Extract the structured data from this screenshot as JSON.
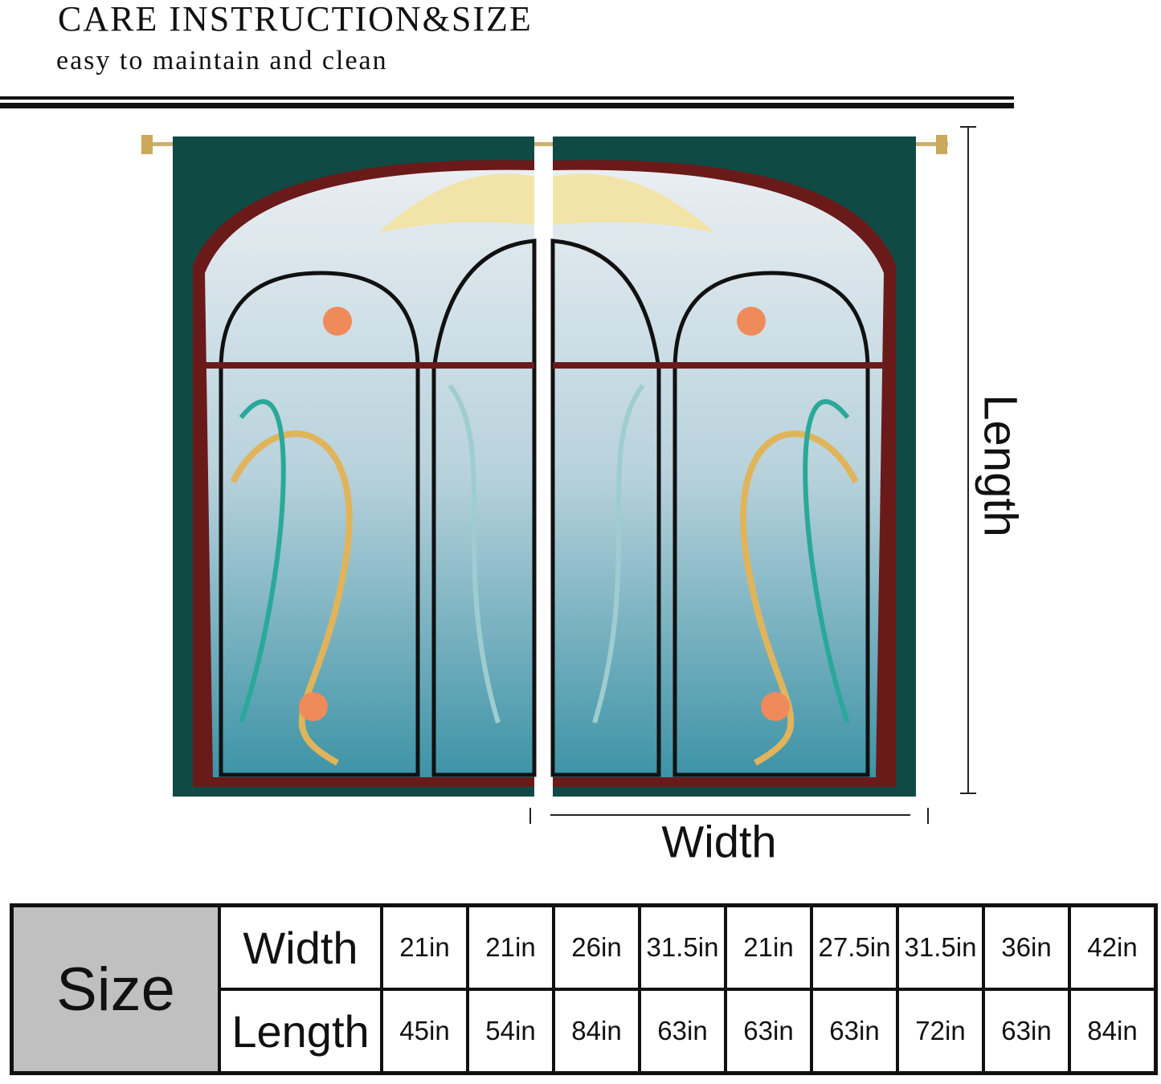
{
  "header": {
    "title": "CARE INSTRUCTION&SIZE",
    "subtitle": "easy to maintain and clean"
  },
  "diagram": {
    "length_label": "Length",
    "width_label": "Width"
  },
  "colors": {
    "curtain_border": "#0f4a44",
    "frame": "#6b1a1a",
    "glass": "#a9cfd8",
    "gold": "#e0b45a",
    "teal": "#2aa89a",
    "flower": "#ef8a5a"
  },
  "size_table": {
    "header": "Size",
    "rows": [
      {
        "label": "Width",
        "values": [
          "21in",
          "21in",
          "26in",
          "31.5in",
          "21in",
          "27.5in",
          "31.5in",
          "36in",
          "42in"
        ]
      },
      {
        "label": "Length",
        "values": [
          "45in",
          "54in",
          "84in",
          "63in",
          "63in",
          "63in",
          "72in",
          "63in",
          "84in"
        ]
      }
    ]
  }
}
